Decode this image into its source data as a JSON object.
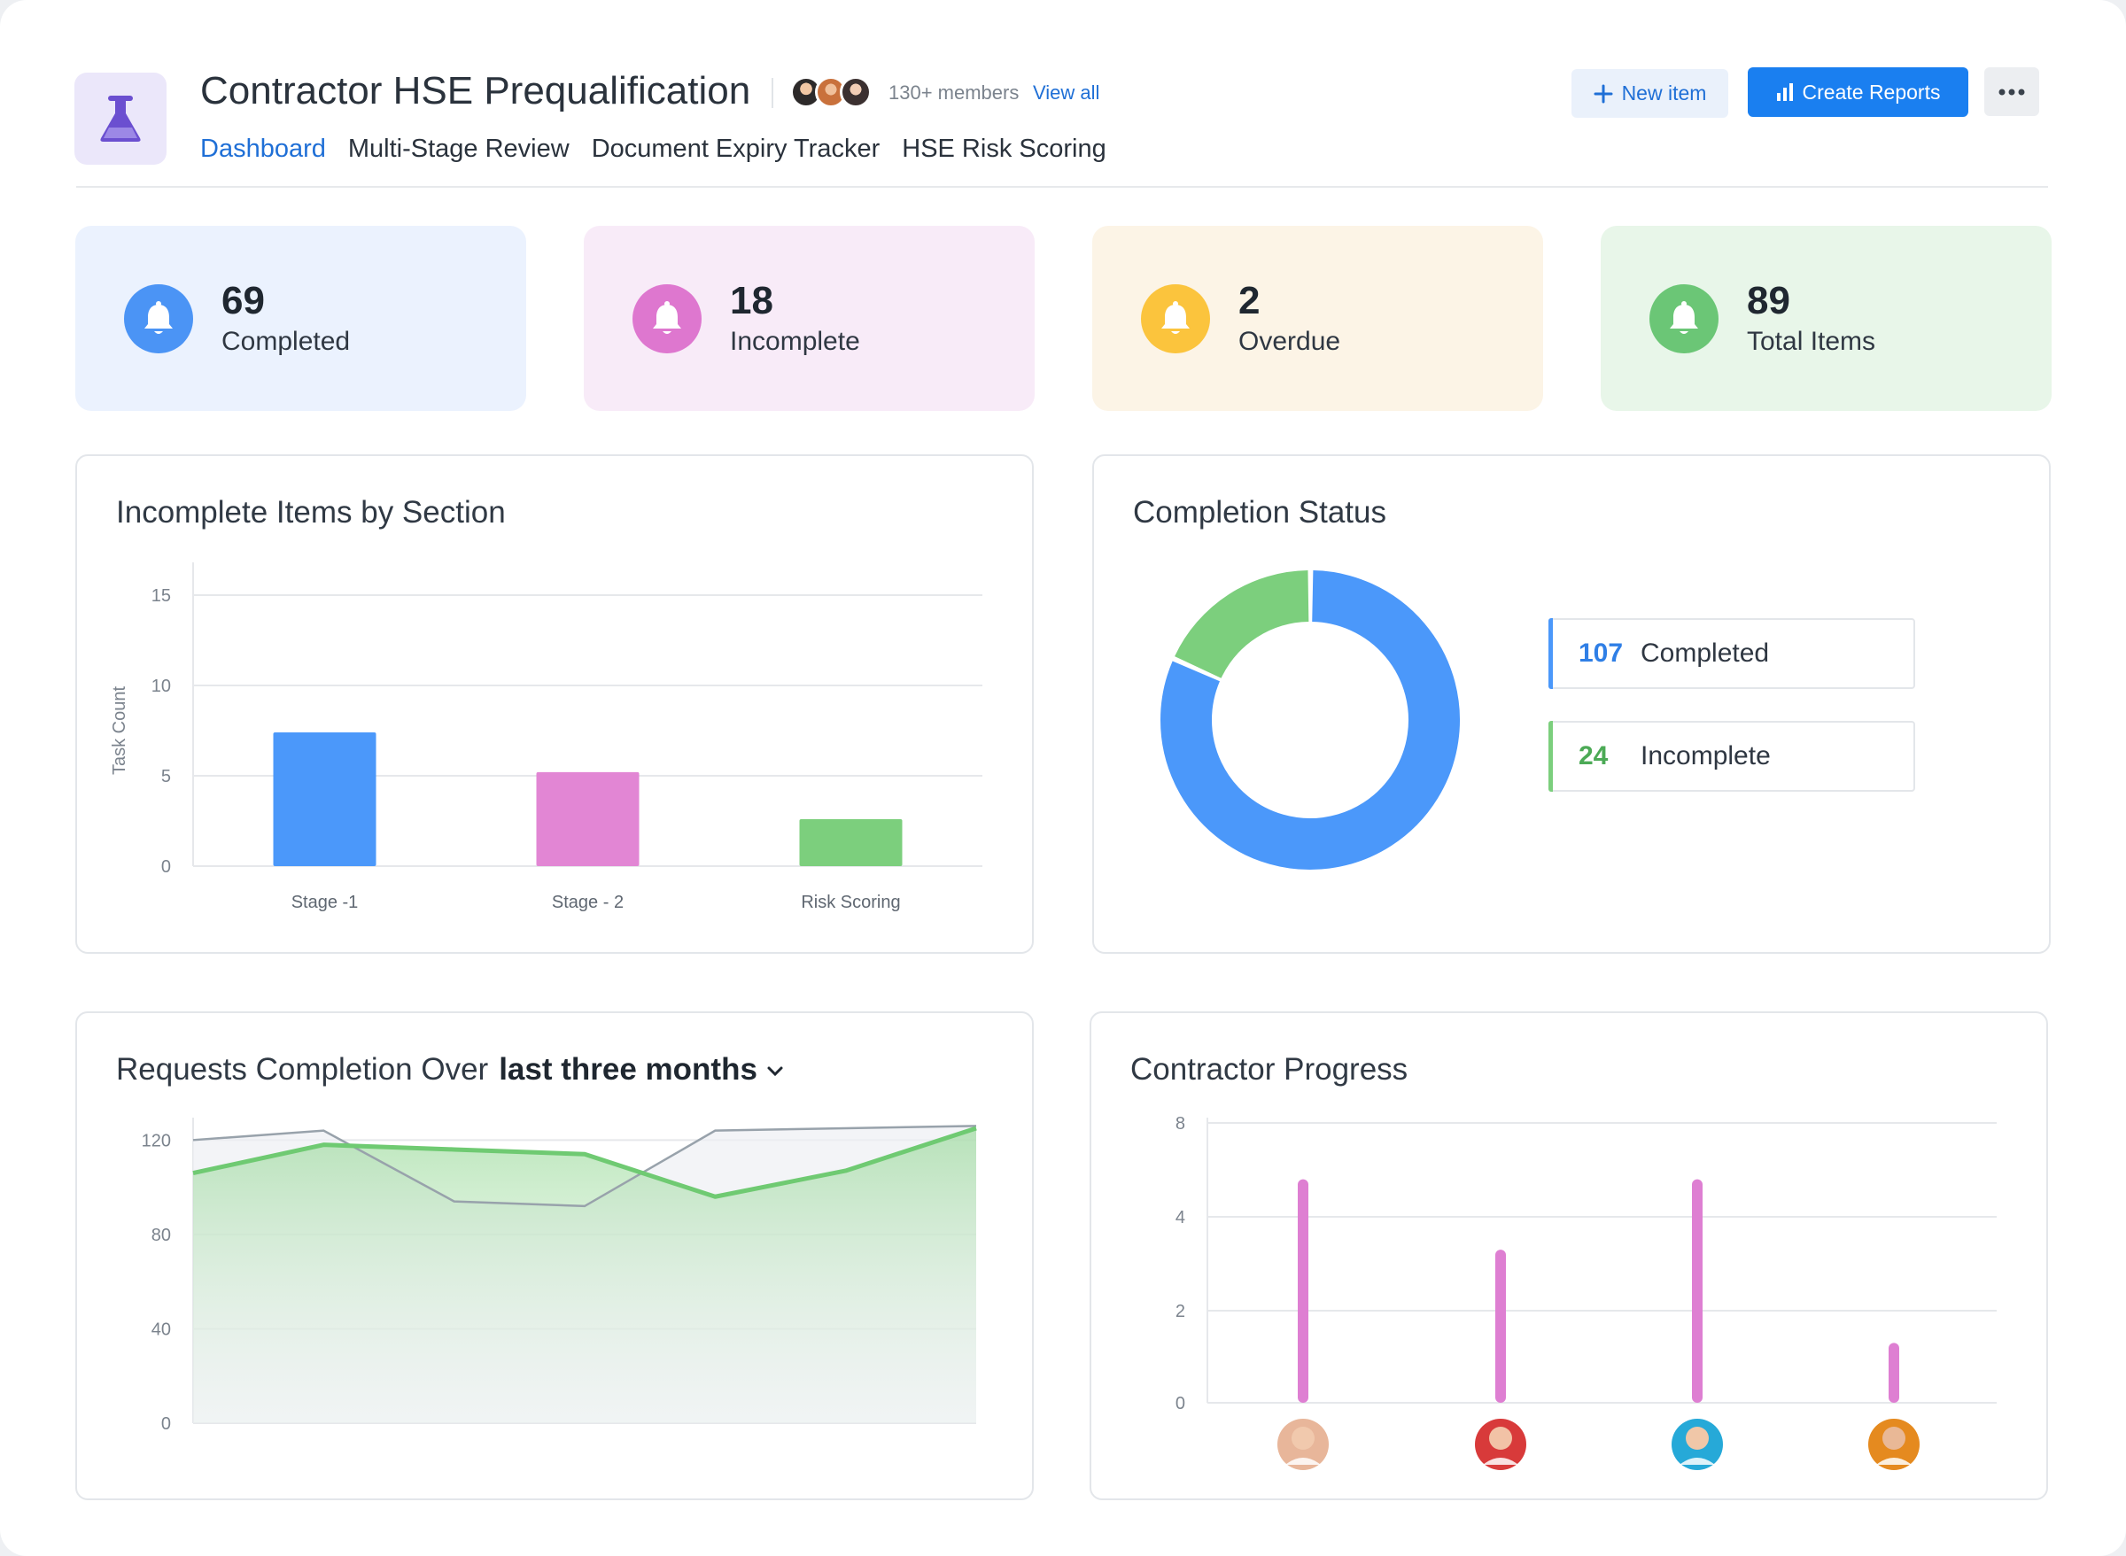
{
  "header": {
    "title": "Contractor HSE Prequalification",
    "members_label": "130+ members",
    "view_all": "View all",
    "app_icon": "flask-icon",
    "tabs": [
      {
        "label": "Dashboard",
        "active": true
      },
      {
        "label": "Multi-Stage Review",
        "active": false
      },
      {
        "label": "Document Expiry Tracker",
        "active": false
      },
      {
        "label": "HSE Risk Scoring",
        "active": false
      }
    ],
    "new_item_label": "New item",
    "create_reports_label": "Create Reports",
    "more_icon": "more-horizontal-icon"
  },
  "stats": [
    {
      "value": "69",
      "label": "Completed",
      "bg": "#ebf2fe",
      "icon_bg": "#4b94f5",
      "icon": "bell-icon"
    },
    {
      "value": "18",
      "label": "Incomplete",
      "bg": "#f8ebf8",
      "icon_bg": "#de77cf",
      "icon": "bell-icon"
    },
    {
      "value": "2",
      "label": "Overdue",
      "bg": "#fcf4e6",
      "icon_bg": "#fbc43d",
      "icon": "bell-icon"
    },
    {
      "value": "89",
      "label": "Total Items",
      "bg": "#e8f6e9",
      "icon_bg": "#6bc676",
      "icon": "bell-icon"
    }
  ],
  "panels": {
    "incomplete_title": "Incomplete Items by Section",
    "completion_title": "Completion Status",
    "requests_title": "Requests Completion Over",
    "requests_period": "last three months",
    "contractor_title": "Contractor Progress"
  },
  "chart_data": [
    {
      "type": "bar",
      "title": "Incomplete Items by Section",
      "ylabel": "Task Count",
      "categories": [
        "Stage -1",
        "Stage - 2",
        "Risk Scoring"
      ],
      "values": [
        7.4,
        5.2,
        2.6
      ],
      "colors": [
        "#4b98fa",
        "#e286d4",
        "#7ccf7d"
      ],
      "yticks": [
        0,
        5,
        10,
        15
      ],
      "ylim": [
        0,
        15
      ],
      "grid": true
    },
    {
      "type": "pie",
      "title": "Completion Status",
      "donut": true,
      "slices": [
        {
          "label": "Completed",
          "value": 107,
          "color": "#4b98fa"
        },
        {
          "label": "Incomplete",
          "value": 24,
          "color": "#7ccf7d"
        }
      ],
      "legend": "right"
    },
    {
      "type": "area",
      "title": "Requests Completion Over last three months",
      "x": [
        0,
        1,
        2,
        3,
        4,
        5,
        6
      ],
      "series": [
        {
          "values": [
            106,
            118,
            116,
            114,
            96,
            107,
            125
          ],
          "color": "#6fca72",
          "fill": true
        },
        {
          "values": [
            120,
            124,
            94,
            92,
            124,
            125,
            126
          ],
          "color": "#98a2ab",
          "fill": true
        }
      ],
      "yticks": [
        0,
        40,
        80,
        120
      ],
      "ylim": [
        0,
        128
      ],
      "grid": true
    },
    {
      "type": "bar",
      "title": "Contractor Progress",
      "categories": [
        "contractor-1",
        "contractor-2",
        "contractor-3",
        "contractor-4"
      ],
      "values": [
        5.6,
        3.3,
        5.6,
        1.3
      ],
      "color": "#de7fd2",
      "yticks": [
        0,
        2,
        4,
        8
      ],
      "grid": true,
      "x_axis": "avatars"
    }
  ]
}
